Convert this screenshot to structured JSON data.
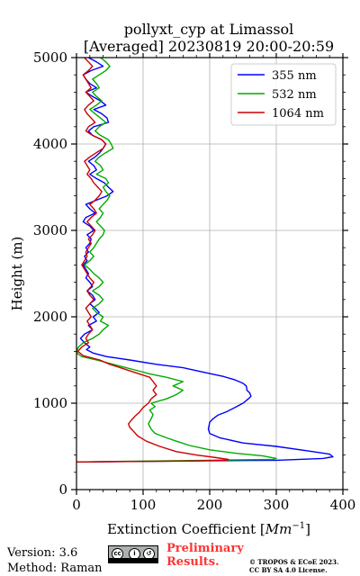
{
  "chart_data": {
    "type": "line",
    "title": "pollyxt_cyp at Limassol",
    "subtitle": "[Averaged] 20230819 20:00-20:59",
    "xlabel_main": "Extinction Coefficient [",
    "xlabel_unit_base": "Mm",
    "xlabel_unit_exp": "−1",
    "xlabel_close": "]",
    "ylabel": "Height (m)",
    "xlim": [
      0,
      400
    ],
    "ylim": [
      0,
      5000
    ],
    "x_ticks": [
      "0",
      "100",
      "200",
      "300",
      "400"
    ],
    "y_ticks": [
      "0",
      "1000",
      "2000",
      "3000",
      "4000",
      "5000"
    ],
    "grid": true,
    "legend_position": "top-right",
    "series": [
      {
        "name": "355 nm",
        "color": "#0000ff",
        "points": [
          [
            0,
            320
          ],
          [
            150,
            330
          ],
          [
            300,
            340
          ],
          [
            370,
            360
          ],
          [
            385,
            380
          ],
          [
            380,
            410
          ],
          [
            355,
            440
          ],
          [
            300,
            500
          ],
          [
            250,
            540
          ],
          [
            215,
            600
          ],
          [
            200,
            650
          ],
          [
            198,
            700
          ],
          [
            200,
            780
          ],
          [
            205,
            820
          ],
          [
            212,
            860
          ],
          [
            225,
            900
          ],
          [
            238,
            950
          ],
          [
            250,
            1000
          ],
          [
            258,
            1050
          ],
          [
            262,
            1080
          ],
          [
            260,
            1120
          ],
          [
            256,
            1150
          ],
          [
            255,
            1200
          ],
          [
            250,
            1230
          ],
          [
            238,
            1270
          ],
          [
            220,
            1310
          ],
          [
            190,
            1360
          ],
          [
            160,
            1410
          ],
          [
            120,
            1450
          ],
          [
            80,
            1500
          ],
          [
            45,
            1540
          ],
          [
            25,
            1580
          ],
          [
            15,
            1620
          ],
          [
            20,
            1650
          ],
          [
            12,
            1700
          ],
          [
            6,
            1750
          ],
          [
            12,
            1800
          ],
          [
            24,
            1850
          ],
          [
            18,
            1900
          ],
          [
            30,
            1950
          ],
          [
            25,
            2000
          ],
          [
            34,
            2050
          ],
          [
            28,
            2100
          ],
          [
            20,
            2150
          ],
          [
            28,
            2200
          ],
          [
            24,
            2250
          ],
          [
            16,
            2300
          ],
          [
            24,
            2350
          ],
          [
            20,
            2400
          ],
          [
            14,
            2450
          ],
          [
            18,
            2500
          ],
          [
            14,
            2550
          ],
          [
            10,
            2600
          ],
          [
            16,
            2650
          ],
          [
            12,
            2700
          ],
          [
            18,
            2750
          ],
          [
            14,
            2800
          ],
          [
            20,
            2850
          ],
          [
            22,
            2900
          ],
          [
            16,
            2950
          ],
          [
            26,
            3000
          ],
          [
            20,
            3050
          ],
          [
            10,
            3100
          ],
          [
            14,
            3150
          ],
          [
            28,
            3200
          ],
          [
            20,
            3250
          ],
          [
            14,
            3300
          ],
          [
            30,
            3350
          ],
          [
            46,
            3400
          ],
          [
            55,
            3450
          ],
          [
            48,
            3500
          ],
          [
            42,
            3550
          ],
          [
            30,
            3600
          ],
          [
            20,
            3650
          ],
          [
            30,
            3700
          ],
          [
            26,
            3750
          ],
          [
            18,
            3800
          ],
          [
            28,
            3850
          ],
          [
            35,
            3900
          ],
          [
            40,
            3950
          ],
          [
            44,
            4000
          ],
          [
            38,
            4050
          ],
          [
            24,
            4100
          ],
          [
            18,
            4150
          ],
          [
            26,
            4200
          ],
          [
            48,
            4250
          ],
          [
            46,
            4300
          ],
          [
            38,
            4350
          ],
          [
            26,
            4400
          ],
          [
            44,
            4450
          ],
          [
            36,
            4500
          ],
          [
            24,
            4550
          ],
          [
            14,
            4600
          ],
          [
            30,
            4650
          ],
          [
            20,
            4700
          ],
          [
            14,
            4750
          ],
          [
            10,
            4800
          ],
          [
            22,
            4850
          ],
          [
            40,
            4900
          ],
          [
            30,
            4950
          ],
          [
            18,
            5000
          ]
        ]
      },
      {
        "name": "532 nm",
        "color": "#00aa00",
        "points": [
          [
            0,
            320
          ],
          [
            100,
            330
          ],
          [
            200,
            340
          ],
          [
            295,
            350
          ],
          [
            300,
            360
          ],
          [
            280,
            390
          ],
          [
            240,
            420
          ],
          [
            200,
            460
          ],
          [
            170,
            510
          ],
          [
            150,
            560
          ],
          [
            135,
            600
          ],
          [
            118,
            650
          ],
          [
            112,
            700
          ],
          [
            108,
            760
          ],
          [
            112,
            820
          ],
          [
            115,
            870
          ],
          [
            110,
            920
          ],
          [
            118,
            960
          ],
          [
            112,
            1000
          ],
          [
            135,
            1050
          ],
          [
            150,
            1100
          ],
          [
            160,
            1150
          ],
          [
            145,
            1200
          ],
          [
            160,
            1250
          ],
          [
            135,
            1300
          ],
          [
            110,
            1340
          ],
          [
            90,
            1380
          ],
          [
            70,
            1420
          ],
          [
            50,
            1460
          ],
          [
            30,
            1500
          ],
          [
            8,
            1540
          ],
          [
            2,
            1570
          ],
          [
            0,
            1600
          ],
          [
            3,
            1650
          ],
          [
            10,
            1700
          ],
          [
            24,
            1750
          ],
          [
            34,
            1800
          ],
          [
            40,
            1850
          ],
          [
            48,
            1900
          ],
          [
            36,
            1950
          ],
          [
            40,
            2000
          ],
          [
            30,
            2050
          ],
          [
            24,
            2100
          ],
          [
            34,
            2150
          ],
          [
            40,
            2200
          ],
          [
            34,
            2250
          ],
          [
            24,
            2300
          ],
          [
            34,
            2350
          ],
          [
            40,
            2400
          ],
          [
            34,
            2450
          ],
          [
            26,
            2500
          ],
          [
            20,
            2550
          ],
          [
            12,
            2600
          ],
          [
            20,
            2650
          ],
          [
            26,
            2700
          ],
          [
            20,
            2750
          ],
          [
            26,
            2800
          ],
          [
            30,
            2850
          ],
          [
            34,
            2900
          ],
          [
            40,
            2950
          ],
          [
            42,
            3000
          ],
          [
            36,
            3050
          ],
          [
            30,
            3100
          ],
          [
            36,
            3150
          ],
          [
            40,
            3200
          ],
          [
            34,
            3250
          ],
          [
            40,
            3300
          ],
          [
            46,
            3350
          ],
          [
            50,
            3400
          ],
          [
            44,
            3450
          ],
          [
            40,
            3500
          ],
          [
            48,
            3550
          ],
          [
            44,
            3600
          ],
          [
            30,
            3650
          ],
          [
            40,
            3700
          ],
          [
            36,
            3750
          ],
          [
            28,
            3800
          ],
          [
            34,
            3850
          ],
          [
            44,
            3900
          ],
          [
            55,
            3950
          ],
          [
            52,
            4000
          ],
          [
            48,
            4050
          ],
          [
            36,
            4100
          ],
          [
            28,
            4150
          ],
          [
            34,
            4200
          ],
          [
            44,
            4250
          ],
          [
            36,
            4300
          ],
          [
            28,
            4350
          ],
          [
            20,
            4400
          ],
          [
            30,
            4450
          ],
          [
            38,
            4500
          ],
          [
            30,
            4550
          ],
          [
            24,
            4600
          ],
          [
            34,
            4650
          ],
          [
            30,
            4700
          ],
          [
            24,
            4750
          ],
          [
            34,
            4800
          ],
          [
            44,
            4850
          ],
          [
            50,
            4900
          ],
          [
            44,
            4950
          ],
          [
            36,
            5000
          ]
        ]
      },
      {
        "name": "1064 nm",
        "color": "#cc0000",
        "points": [
          [
            0,
            320
          ],
          [
            80,
            325
          ],
          [
            160,
            330
          ],
          [
            225,
            340
          ],
          [
            228,
            350
          ],
          [
            210,
            370
          ],
          [
            180,
            400
          ],
          [
            150,
            440
          ],
          [
            125,
            500
          ],
          [
            105,
            560
          ],
          [
            92,
            620
          ],
          [
            85,
            680
          ],
          [
            80,
            720
          ],
          [
            78,
            760
          ],
          [
            82,
            800
          ],
          [
            88,
            850
          ],
          [
            95,
            900
          ],
          [
            100,
            950
          ],
          [
            108,
            1000
          ],
          [
            112,
            1050
          ],
          [
            120,
            1100
          ],
          [
            115,
            1150
          ],
          [
            120,
            1200
          ],
          [
            115,
            1250
          ],
          [
            110,
            1300
          ],
          [
            90,
            1350
          ],
          [
            70,
            1400
          ],
          [
            50,
            1450
          ],
          [
            35,
            1500
          ],
          [
            10,
            1550
          ],
          [
            2,
            1600
          ],
          [
            8,
            1650
          ],
          [
            18,
            1700
          ],
          [
            14,
            1750
          ],
          [
            18,
            1800
          ],
          [
            24,
            1850
          ],
          [
            20,
            1900
          ],
          [
            16,
            1950
          ],
          [
            22,
            2000
          ],
          [
            18,
            2050
          ],
          [
            14,
            2100
          ],
          [
            20,
            2150
          ],
          [
            26,
            2200
          ],
          [
            20,
            2250
          ],
          [
            16,
            2300
          ],
          [
            22,
            2350
          ],
          [
            26,
            2400
          ],
          [
            20,
            2450
          ],
          [
            16,
            2500
          ],
          [
            12,
            2550
          ],
          [
            8,
            2600
          ],
          [
            12,
            2650
          ],
          [
            16,
            2700
          ],
          [
            14,
            2750
          ],
          [
            18,
            2800
          ],
          [
            22,
            2850
          ],
          [
            18,
            2900
          ],
          [
            24,
            2950
          ],
          [
            28,
            3000
          ],
          [
            22,
            3050
          ],
          [
            16,
            3100
          ],
          [
            22,
            3150
          ],
          [
            30,
            3200
          ],
          [
            26,
            3250
          ],
          [
            20,
            3300
          ],
          [
            28,
            3350
          ],
          [
            34,
            3400
          ],
          [
            38,
            3450
          ],
          [
            32,
            3500
          ],
          [
            26,
            3550
          ],
          [
            22,
            3600
          ],
          [
            16,
            3650
          ],
          [
            20,
            3700
          ],
          [
            16,
            3750
          ],
          [
            12,
            3800
          ],
          [
            20,
            3850
          ],
          [
            30,
            3900
          ],
          [
            40,
            3950
          ],
          [
            44,
            4000
          ],
          [
            38,
            4050
          ],
          [
            24,
            4100
          ],
          [
            14,
            4150
          ],
          [
            18,
            4200
          ],
          [
            28,
            4250
          ],
          [
            22,
            4300
          ],
          [
            16,
            4350
          ],
          [
            12,
            4400
          ],
          [
            18,
            4450
          ],
          [
            26,
            4500
          ],
          [
            20,
            4550
          ],
          [
            14,
            4600
          ],
          [
            22,
            4650
          ],
          [
            18,
            4700
          ],
          [
            14,
            4750
          ],
          [
            10,
            4800
          ],
          [
            18,
            4850
          ],
          [
            24,
            4900
          ],
          [
            18,
            4950
          ],
          [
            12,
            5000
          ]
        ]
      }
    ]
  },
  "footer": {
    "version": "Version: 3.6",
    "method": "Method: Raman",
    "license_badge": "cc by sa",
    "preliminary_line1": "Preliminary",
    "preliminary_line2": "Results.",
    "copyright_line1": "© TROPOS & ECoE 2023.",
    "copyright_line2": "CC BY SA 4.0 License."
  }
}
